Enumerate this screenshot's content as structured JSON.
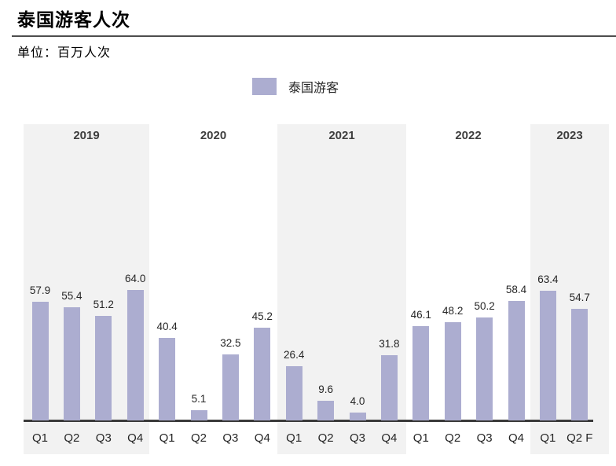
{
  "header": {
    "title": "泰国游客人次",
    "unit_label": "单位：百万人次"
  },
  "legend": {
    "series_label": "泰国游客",
    "swatch_color": "#acadd0"
  },
  "chart_data": {
    "type": "bar",
    "title": "泰国游客人次",
    "unit": "百万人次",
    "series_name": "泰国游客",
    "ylim": [
      0,
      70
    ],
    "grid": false,
    "legend_position": "top",
    "bar_color": "#acadd0",
    "band_color": "#f2f2f2",
    "value_label_decimals": 1,
    "groups": [
      {
        "year": "2019",
        "shaded": true,
        "categories": [
          "Q1",
          "Q2",
          "Q3",
          "Q4"
        ],
        "values": [
          57.9,
          55.4,
          51.2,
          64.0
        ]
      },
      {
        "year": "2020",
        "shaded": false,
        "categories": [
          "Q1",
          "Q2",
          "Q3",
          "Q4"
        ],
        "values": [
          40.4,
          5.1,
          32.5,
          45.2
        ]
      },
      {
        "year": "2021",
        "shaded": true,
        "categories": [
          "Q1",
          "Q2",
          "Q3",
          "Q4"
        ],
        "values": [
          26.4,
          9.6,
          4.0,
          31.8
        ]
      },
      {
        "year": "2022",
        "shaded": false,
        "categories": [
          "Q1",
          "Q2",
          "Q3",
          "Q4"
        ],
        "values": [
          46.1,
          48.2,
          50.2,
          58.4
        ]
      },
      {
        "year": "2023",
        "shaded": true,
        "categories": [
          "Q1",
          "Q2 F"
        ],
        "values": [
          63.4,
          54.7
        ]
      }
    ]
  }
}
